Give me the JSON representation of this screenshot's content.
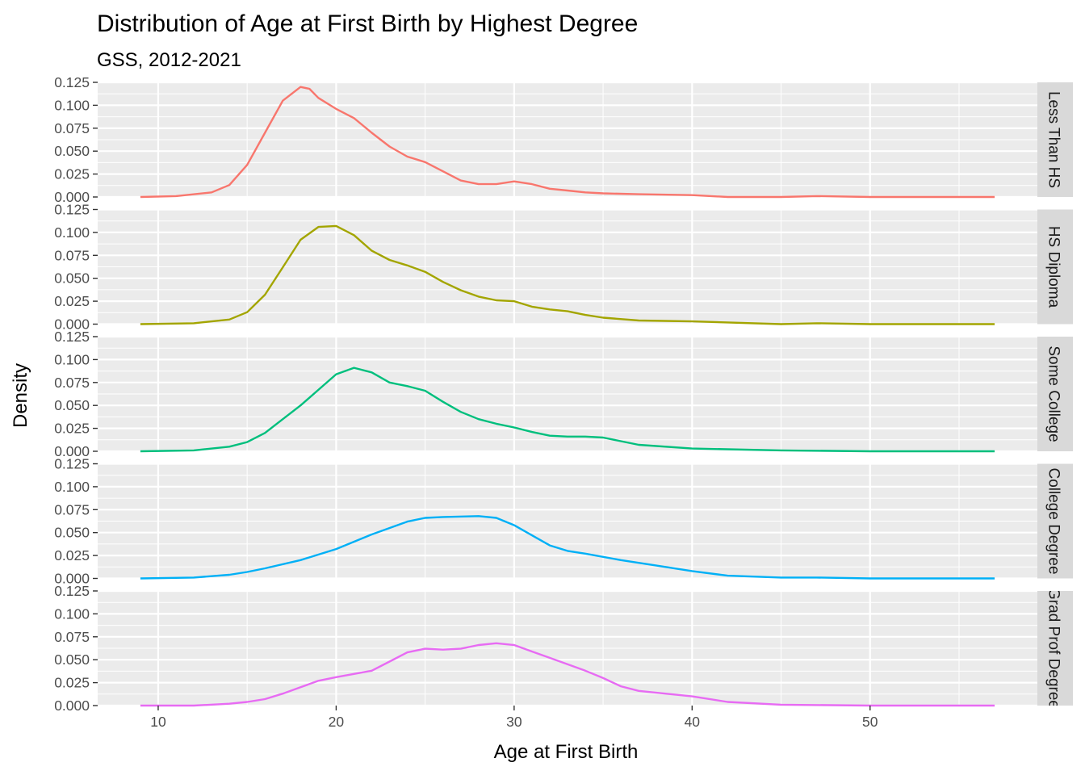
{
  "chart_data": {
    "type": "line",
    "title": "Distribution of Age at First Birth by Highest Degree",
    "subtitle": "GSS, 2012-2021",
    "xlabel": "Age at First Birth",
    "ylabel": "Density",
    "xlim": [
      6.6,
      59.4
    ],
    "ylim": [
      0,
      0.125
    ],
    "x_ticks": [
      10,
      20,
      30,
      40,
      50
    ],
    "y_ticks": [
      0,
      0.025,
      0.05,
      0.075,
      0.1,
      0.125
    ],
    "y_tick_labels": [
      "0.000",
      "0.025",
      "0.050",
      "0.075",
      "0.100",
      "0.125"
    ],
    "grid": true,
    "facets": "rows",
    "series": [
      {
        "name": "Less Than HS",
        "color": "#F8766D",
        "x": [
          9,
          11,
          13,
          14,
          15,
          16,
          17,
          18,
          18.5,
          19,
          20,
          21,
          22,
          23,
          24,
          25,
          26,
          27,
          28,
          29,
          30,
          31,
          32,
          33,
          34,
          35,
          37,
          40,
          42,
          45,
          47,
          50,
          57
        ],
        "y": [
          0.0,
          0.001,
          0.005,
          0.013,
          0.035,
          0.07,
          0.105,
          0.12,
          0.118,
          0.108,
          0.096,
          0.086,
          0.07,
          0.055,
          0.044,
          0.038,
          0.028,
          0.018,
          0.014,
          0.014,
          0.017,
          0.014,
          0.009,
          0.007,
          0.005,
          0.004,
          0.003,
          0.002,
          0.0,
          0.0,
          0.001,
          0.0,
          0.0
        ]
      },
      {
        "name": "HS Diploma",
        "color": "#A3A500",
        "x": [
          9,
          12,
          14,
          15,
          16,
          17,
          18,
          19,
          20,
          21,
          22,
          23,
          24,
          25,
          26,
          27,
          28,
          29,
          30,
          31,
          32,
          33,
          34,
          35,
          37,
          40,
          45,
          47,
          50,
          57
        ],
        "y": [
          0.0,
          0.001,
          0.005,
          0.013,
          0.032,
          0.062,
          0.092,
          0.106,
          0.107,
          0.097,
          0.08,
          0.07,
          0.064,
          0.057,
          0.046,
          0.037,
          0.03,
          0.026,
          0.025,
          0.019,
          0.016,
          0.014,
          0.01,
          0.007,
          0.004,
          0.003,
          0.0,
          0.001,
          0.0,
          0.0
        ]
      },
      {
        "name": "Some College",
        "color": "#00BF7D",
        "x": [
          9,
          12,
          14,
          15,
          16,
          17,
          18,
          19,
          20,
          21,
          22,
          23,
          24,
          25,
          26,
          27,
          28,
          29,
          30,
          31,
          32,
          33,
          34,
          35,
          37,
          40,
          45,
          50,
          57
        ],
        "y": [
          0.0,
          0.001,
          0.005,
          0.01,
          0.02,
          0.035,
          0.05,
          0.067,
          0.084,
          0.091,
          0.086,
          0.075,
          0.071,
          0.066,
          0.054,
          0.043,
          0.035,
          0.03,
          0.026,
          0.021,
          0.017,
          0.016,
          0.016,
          0.015,
          0.007,
          0.003,
          0.001,
          0.0,
          0.0
        ]
      },
      {
        "name": "College Degree",
        "color": "#00B0F6",
        "x": [
          9,
          12,
          14,
          15,
          16,
          18,
          20,
          22,
          24,
          25,
          26,
          28,
          29,
          30,
          31,
          32,
          33,
          34,
          36,
          38,
          40,
          42,
          45,
          47,
          50,
          57
        ],
        "y": [
          0.0,
          0.001,
          0.004,
          0.007,
          0.011,
          0.02,
          0.032,
          0.048,
          0.062,
          0.066,
          0.067,
          0.068,
          0.066,
          0.058,
          0.047,
          0.036,
          0.03,
          0.027,
          0.02,
          0.014,
          0.008,
          0.003,
          0.001,
          0.001,
          0.0,
          0.0
        ]
      },
      {
        "name": "Grad Prof Degree",
        "color": "#E76BF3",
        "x": [
          9,
          12,
          14,
          15,
          16,
          17,
          18,
          19,
          20,
          22,
          23,
          24,
          25,
          26,
          27,
          28,
          29,
          30,
          31,
          32,
          34,
          35,
          36,
          37,
          38,
          40,
          42,
          45,
          50,
          57
        ],
        "y": [
          0.0,
          0.0,
          0.002,
          0.004,
          0.007,
          0.013,
          0.02,
          0.027,
          0.031,
          0.038,
          0.048,
          0.058,
          0.062,
          0.061,
          0.062,
          0.066,
          0.068,
          0.066,
          0.059,
          0.052,
          0.038,
          0.03,
          0.021,
          0.016,
          0.014,
          0.01,
          0.004,
          0.001,
          0.0,
          0.0
        ]
      }
    ],
    "strip_labels": [
      "Less Than HS",
      "HS Diploma",
      "Some College",
      "College Degree",
      "Grad Prof Degree"
    ]
  }
}
